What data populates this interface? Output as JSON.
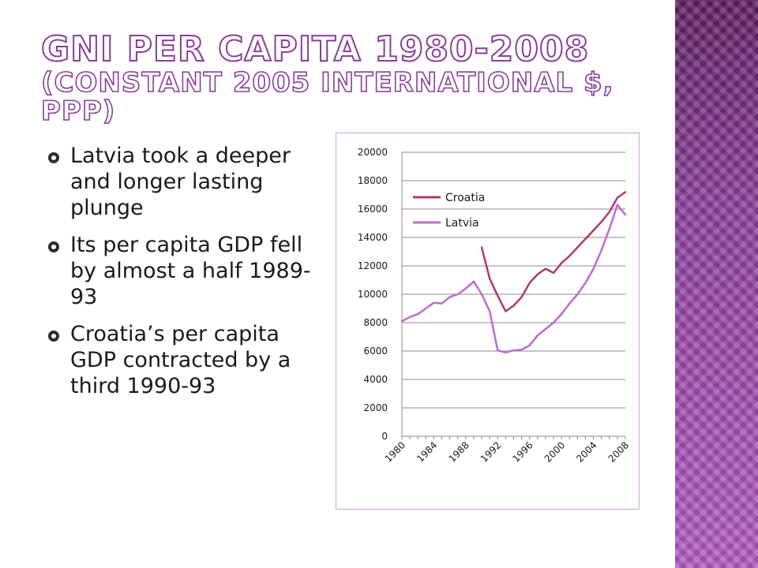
{
  "slide": {
    "title_line1": "GNI per capita 1980-2008",
    "title_line2": "(constant 2005 international $, PPP)",
    "bullets": [
      "Latvia took a deeper and longer lasting plunge",
      "Its per capita GDP fell by almost a half 1989-93",
      "Croatia’s per capita GDP contracted by a third 1990-93"
    ],
    "accent_color": "#8a3e99",
    "band_color": "#a048b0"
  },
  "chart_data": {
    "type": "line",
    "title": "",
    "xlabel": "",
    "ylabel": "",
    "x": [
      1980,
      1981,
      1982,
      1983,
      1984,
      1985,
      1986,
      1987,
      1988,
      1989,
      1990,
      1991,
      1992,
      1993,
      1994,
      1995,
      1996,
      1997,
      1998,
      1999,
      2000,
      2001,
      2002,
      2003,
      2004,
      2005,
      2006,
      2007,
      2008
    ],
    "xticks": [
      1980,
      1984,
      1988,
      1992,
      1996,
      2000,
      2004,
      2008
    ],
    "ylim": [
      0,
      20000
    ],
    "yticks": [
      0,
      2000,
      4000,
      6000,
      8000,
      10000,
      12000,
      14000,
      16000,
      18000,
      20000
    ],
    "grid": "horizontal",
    "legend_position": "top-left",
    "series": [
      {
        "name": "Croatia",
        "color": "#b13a6d",
        "values": [
          null,
          null,
          null,
          null,
          null,
          null,
          null,
          null,
          null,
          null,
          13300,
          11100,
          9900,
          8800,
          9200,
          9800,
          10800,
          11400,
          11800,
          11500,
          12200,
          12700,
          13300,
          13900,
          14500,
          15100,
          15800,
          16800,
          17200
        ]
      },
      {
        "name": "Latvia",
        "color": "#bd6ccf",
        "values": [
          8100,
          8400,
          8600,
          9000,
          9400,
          9350,
          9800,
          10000,
          10400,
          10900,
          10000,
          8800,
          6050,
          5900,
          6050,
          6100,
          6400,
          7100,
          7550,
          8000,
          8600,
          9350,
          10000,
          10800,
          11800,
          13100,
          14600,
          16300,
          15600
        ]
      }
    ]
  }
}
